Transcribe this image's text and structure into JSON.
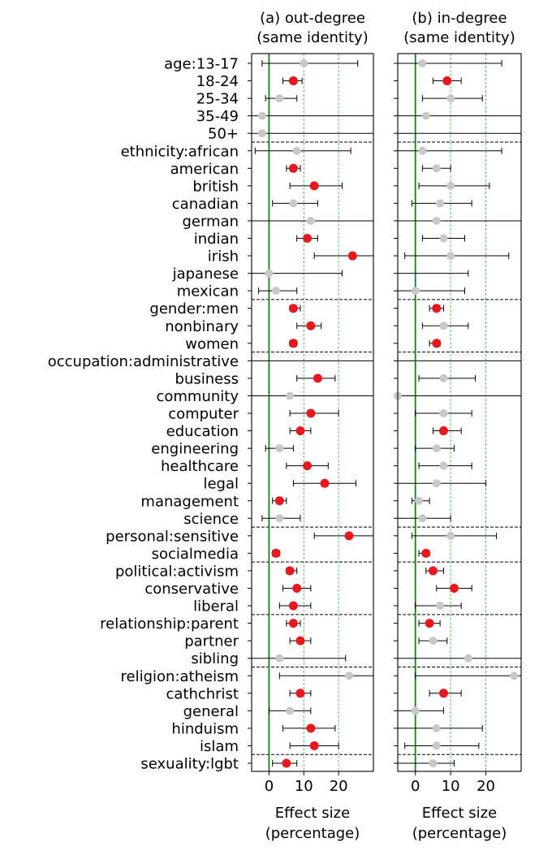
{
  "chart_data": [
    {
      "type": "scatter",
      "title": "(a) out-degree\n(same identity)",
      "xlabel": "Effect size\n(percentage)",
      "xlim": [
        -5,
        30
      ],
      "xticks": [
        0,
        10,
        20
      ],
      "reference_line": 0,
      "colors": {
        "significant": "#e8191e",
        "nonsignificant": "#c8c8c8",
        "zero_line": "#1a7f1a",
        "grid": "#33cc33"
      },
      "rows": [
        {
          "label": "age:13-17",
          "v": 10,
          "lo": -2,
          "hi": 25.5,
          "sig": false
        },
        {
          "label": "18-24",
          "v": 7,
          "lo": 4,
          "hi": 9.5,
          "sig": true
        },
        {
          "label": "25-34",
          "v": 3,
          "lo": -1,
          "hi": 8,
          "sig": false
        },
        {
          "label": "35-49",
          "v": -2,
          "lo": -5,
          "hi": 30,
          "sig": false
        },
        {
          "label": "50+",
          "v": -2,
          "lo": -5,
          "hi": 30,
          "sig": false
        },
        {
          "label": "ethnicity:african",
          "v": 8,
          "lo": -4,
          "hi": 23.5,
          "sig": false
        },
        {
          "label": "american",
          "v": 7,
          "lo": 5,
          "hi": 9,
          "sig": true
        },
        {
          "label": "british",
          "v": 13,
          "lo": 6,
          "hi": 21,
          "sig": true
        },
        {
          "label": "canadian",
          "v": 7,
          "lo": 1,
          "hi": 14,
          "sig": false
        },
        {
          "label": "german",
          "v": 12,
          "lo": -5,
          "hi": 30,
          "sig": false
        },
        {
          "label": "indian",
          "v": 11,
          "lo": 8,
          "hi": 14,
          "sig": true
        },
        {
          "label": "irish",
          "v": 24,
          "lo": 13,
          "hi": 30,
          "sig": true
        },
        {
          "label": "japanese",
          "v": 0,
          "lo": -5,
          "hi": 21,
          "sig": false
        },
        {
          "label": "mexican",
          "v": 2,
          "lo": -3,
          "hi": 8,
          "sig": false
        },
        {
          "label": "gender:men",
          "v": 7,
          "lo": 6,
          "hi": 9,
          "sig": true
        },
        {
          "label": "nonbinary",
          "v": 12,
          "lo": 8,
          "hi": 15,
          "sig": true
        },
        {
          "label": "women",
          "v": 7,
          "lo": 6,
          "hi": 8,
          "sig": true
        },
        {
          "label": "occupation:administrative",
          "v": null,
          "lo": -5,
          "hi": 30,
          "sig": false
        },
        {
          "label": "business",
          "v": 14,
          "lo": 8,
          "hi": 19,
          "sig": true
        },
        {
          "label": "community",
          "v": 6,
          "lo": -5,
          "hi": 30,
          "sig": false
        },
        {
          "label": "computer",
          "v": 12,
          "lo": 6,
          "hi": 20,
          "sig": true
        },
        {
          "label": "education",
          "v": 9,
          "lo": 6,
          "hi": 12,
          "sig": true
        },
        {
          "label": "engineering",
          "v": 3,
          "lo": -1,
          "hi": 7,
          "sig": false
        },
        {
          "label": "healthcare",
          "v": 11,
          "lo": 5,
          "hi": 17,
          "sig": true
        },
        {
          "label": "legal",
          "v": 16,
          "lo": 7,
          "hi": 25,
          "sig": true
        },
        {
          "label": "management",
          "v": 3,
          "lo": 1,
          "hi": 5,
          "sig": true
        },
        {
          "label": "science",
          "v": 3,
          "lo": -2,
          "hi": 9,
          "sig": false
        },
        {
          "label": "personal:sensitive",
          "v": 23,
          "lo": 13,
          "hi": 30,
          "sig": true
        },
        {
          "label": "socialmedia",
          "v": 2,
          "lo": 1,
          "hi": 3,
          "sig": true
        },
        {
          "label": "political:activism",
          "v": 6,
          "lo": 5,
          "hi": 8,
          "sig": true
        },
        {
          "label": "conservative",
          "v": 8,
          "lo": 4,
          "hi": 12,
          "sig": true
        },
        {
          "label": "liberal",
          "v": 7,
          "lo": 3,
          "hi": 12,
          "sig": true
        },
        {
          "label": "relationship:parent",
          "v": 7,
          "lo": 5,
          "hi": 9,
          "sig": true
        },
        {
          "label": "partner",
          "v": 9,
          "lo": 6,
          "hi": 12,
          "sig": true
        },
        {
          "label": "sibling",
          "v": 3,
          "lo": -5,
          "hi": 22,
          "sig": false
        },
        {
          "label": "religion:atheism",
          "v": 23,
          "lo": 3,
          "hi": 30,
          "sig": false
        },
        {
          "label": "cathchrist",
          "v": 9,
          "lo": 6,
          "hi": 12,
          "sig": true
        },
        {
          "label": "general",
          "v": 6,
          "lo": 0,
          "hi": 12,
          "sig": false
        },
        {
          "label": "hinduism",
          "v": 12,
          "lo": 4,
          "hi": 19,
          "sig": true
        },
        {
          "label": "islam",
          "v": 13,
          "lo": 6,
          "hi": 20,
          "sig": true
        },
        {
          "label": "sexuality:lgbt",
          "v": 5,
          "lo": 1,
          "hi": 8,
          "sig": true
        }
      ]
    },
    {
      "type": "scatter",
      "title": "(b) in-degree\n(same identity)",
      "xlabel": "Effect size\n(percentage)",
      "xlim": [
        -5,
        30
      ],
      "xticks": [
        0,
        10,
        20
      ],
      "reference_line": 0,
      "colors": {
        "significant": "#e8191e",
        "nonsignificant": "#c8c8c8",
        "zero_line": "#1a7f1a",
        "grid": "#33cc33"
      },
      "rows": [
        {
          "label": "age:13-17",
          "v": 2,
          "lo": -5,
          "hi": 24.5,
          "sig": false
        },
        {
          "label": "18-24",
          "v": 9,
          "lo": 5,
          "hi": 13,
          "sig": true
        },
        {
          "label": "25-34",
          "v": 10,
          "lo": 2,
          "hi": 19,
          "sig": false
        },
        {
          "label": "35-49",
          "v": 3,
          "lo": -5,
          "hi": 30,
          "sig": false
        },
        {
          "label": "50+",
          "v": null,
          "lo": -5,
          "hi": 30,
          "sig": false
        },
        {
          "label": "ethnicity:african",
          "v": 2,
          "lo": -5,
          "hi": 24.5,
          "sig": false
        },
        {
          "label": "american",
          "v": 6,
          "lo": 2,
          "hi": 10,
          "sig": false
        },
        {
          "label": "british",
          "v": 10,
          "lo": 1,
          "hi": 21,
          "sig": false
        },
        {
          "label": "canadian",
          "v": 7,
          "lo": -1,
          "hi": 16,
          "sig": false
        },
        {
          "label": "german",
          "v": 6,
          "lo": -5,
          "hi": 30,
          "sig": false
        },
        {
          "label": "indian",
          "v": 8,
          "lo": 2,
          "hi": 14,
          "sig": false
        },
        {
          "label": "irish",
          "v": 10,
          "lo": -3,
          "hi": 26.5,
          "sig": false
        },
        {
          "label": "japanese",
          "v": null,
          "lo": -5,
          "hi": 15,
          "sig": false
        },
        {
          "label": "mexican",
          "v": 0,
          "lo": -5,
          "hi": 14,
          "sig": false
        },
        {
          "label": "gender:men",
          "v": 6,
          "lo": 4,
          "hi": 8,
          "sig": true
        },
        {
          "label": "nonbinary",
          "v": 8,
          "lo": 2,
          "hi": 15,
          "sig": false
        },
        {
          "label": "women",
          "v": 6,
          "lo": 4,
          "hi": 7,
          "sig": true
        },
        {
          "label": "occupation:administrative",
          "v": null,
          "lo": -5,
          "hi": 30,
          "sig": false
        },
        {
          "label": "business",
          "v": 8,
          "lo": 1,
          "hi": 17,
          "sig": false
        },
        {
          "label": "community",
          "v": -5,
          "lo": -5,
          "hi": 30,
          "sig": false
        },
        {
          "label": "computer",
          "v": 8,
          "lo": 0,
          "hi": 16,
          "sig": false
        },
        {
          "label": "education",
          "v": 8,
          "lo": 5,
          "hi": 13,
          "sig": true
        },
        {
          "label": "engineering",
          "v": 6,
          "lo": 0,
          "hi": 11,
          "sig": false
        },
        {
          "label": "healthcare",
          "v": 8,
          "lo": 1,
          "hi": 16,
          "sig": false
        },
        {
          "label": "legal",
          "v": 6,
          "lo": -5,
          "hi": 20,
          "sig": false
        },
        {
          "label": "management",
          "v": 1,
          "lo": -1,
          "hi": 4,
          "sig": false
        },
        {
          "label": "science",
          "v": 2,
          "lo": -5,
          "hi": 10,
          "sig": false
        },
        {
          "label": "personal:sensitive",
          "v": 10,
          "lo": -1,
          "hi": 23,
          "sig": false
        },
        {
          "label": "socialmedia",
          "v": 3,
          "lo": 1,
          "hi": 4,
          "sig": true
        },
        {
          "label": "political:activism",
          "v": 5,
          "lo": 3,
          "hi": 8,
          "sig": true
        },
        {
          "label": "conservative",
          "v": 11,
          "lo": 6,
          "hi": 16,
          "sig": true
        },
        {
          "label": "liberal",
          "v": 7,
          "lo": 0,
          "hi": 13,
          "sig": false
        },
        {
          "label": "relationship:parent",
          "v": 4,
          "lo": 1,
          "hi": 7,
          "sig": true
        },
        {
          "label": "partner",
          "v": 5,
          "lo": 1,
          "hi": 9,
          "sig": false
        },
        {
          "label": "sibling",
          "v": 15,
          "lo": -5,
          "hi": 30,
          "sig": false
        },
        {
          "label": "religion:atheism",
          "v": 28,
          "lo": 0,
          "hi": 30,
          "sig": false
        },
        {
          "label": "cathchrist",
          "v": 8,
          "lo": 4,
          "hi": 13,
          "sig": true
        },
        {
          "label": "general",
          "v": 0,
          "lo": -5,
          "hi": 8,
          "sig": false
        },
        {
          "label": "hinduism",
          "v": 6,
          "lo": -5,
          "hi": 19,
          "sig": false
        },
        {
          "label": "islam",
          "v": 6,
          "lo": -3,
          "hi": 18,
          "sig": false
        },
        {
          "label": "sexuality:lgbt",
          "v": 5,
          "lo": -5,
          "hi": 11,
          "sig": false
        }
      ]
    }
  ],
  "groups": [
    5,
    9,
    3,
    10,
    2,
    3,
    3,
    5,
    1
  ]
}
